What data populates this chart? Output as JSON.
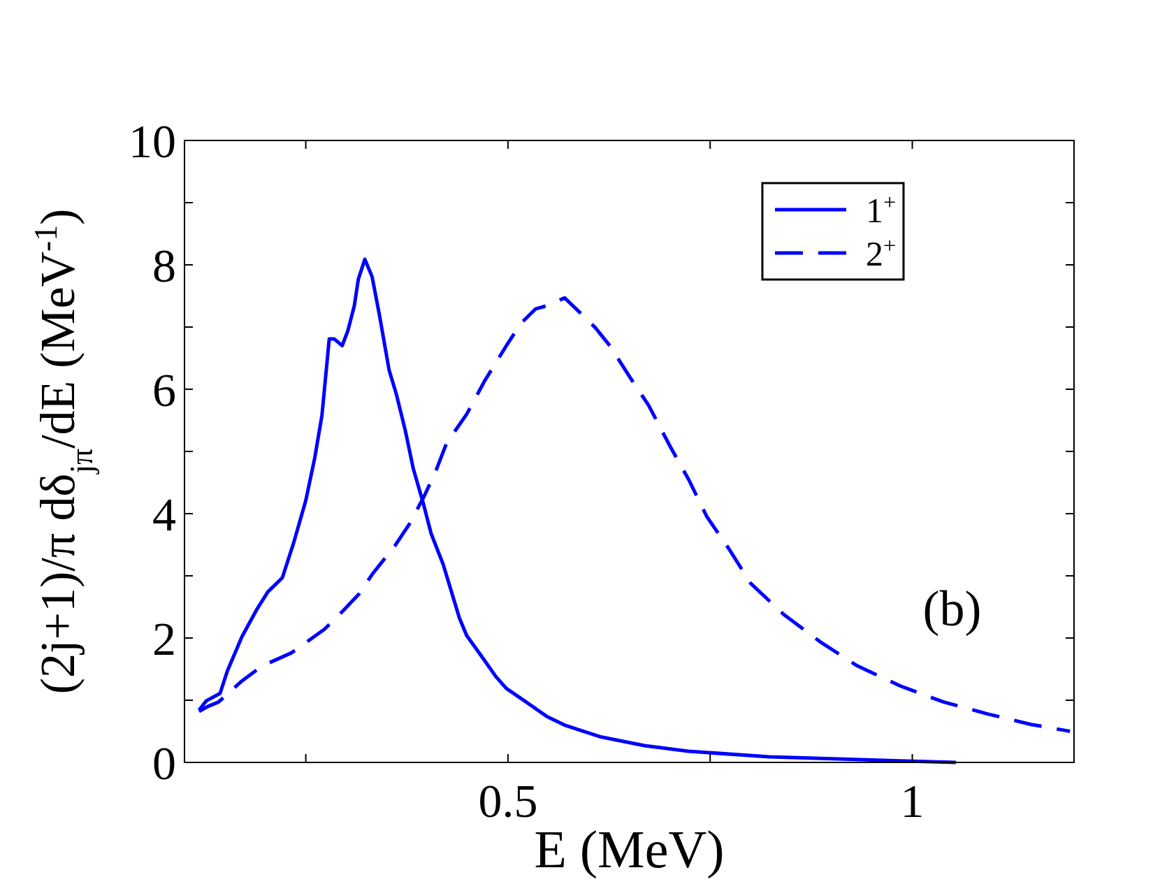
{
  "chart_data": {
    "type": "line",
    "xlabel": "E (MeV)",
    "ylabel": "(2j+1)/π  dδ$_{jπ}$/dE (MeV$^{-1}$)",
    "annotations": [
      "(b)"
    ],
    "xlim": [
      0.1,
      1.2
    ],
    "ylim": [
      0,
      10
    ],
    "xticks": [
      {
        "value": 0.25,
        "label": null
      },
      0.5,
      {
        "value": 0.75,
        "label": null
      },
      1
    ],
    "yticks": [
      0,
      {
        "value": 1,
        "label": null
      },
      2,
      {
        "value": 3,
        "label": null
      },
      4,
      {
        "value": 5,
        "label": null
      },
      6,
      {
        "value": 7,
        "label": null
      },
      8,
      {
        "value": 9,
        "label": null
      },
      10
    ],
    "legend": "top right",
    "grid": false,
    "series": [
      {
        "name": "1$^{+}$",
        "color": "#0000ff",
        "line_style": "solid",
        "x": [
          0.118,
          0.127,
          0.144,
          0.153,
          0.171,
          0.189,
          0.203,
          0.221,
          0.235,
          0.25,
          0.261,
          0.27,
          0.279,
          0.285,
          0.295,
          0.302,
          0.31,
          0.315,
          0.323,
          0.332,
          0.341,
          0.353,
          0.362,
          0.373,
          0.383,
          0.395,
          0.405,
          0.42,
          0.44,
          0.449,
          0.471,
          0.485,
          0.498,
          0.516,
          0.548,
          0.57,
          0.615,
          0.669,
          0.723,
          0.823,
          0.922,
          1.0,
          1.054
        ],
        "values": [
          0.84,
          0.99,
          1.11,
          1.47,
          2.02,
          2.45,
          2.74,
          2.97,
          3.53,
          4.21,
          4.89,
          5.58,
          6.81,
          6.81,
          6.7,
          6.94,
          7.34,
          7.77,
          8.09,
          7.81,
          7.2,
          6.31,
          5.92,
          5.34,
          4.72,
          4.18,
          3.68,
          3.18,
          2.32,
          2.04,
          1.64,
          1.38,
          1.19,
          1.03,
          0.74,
          0.6,
          0.41,
          0.27,
          0.18,
          0.09,
          0.05,
          0.02,
          0.0
        ]
      },
      {
        "name": "2$^{+}$",
        "color": "#0000ff",
        "line_style": "dashed",
        "x": [
          0.118,
          0.129,
          0.142,
          0.171,
          0.196,
          0.232,
          0.273,
          0.297,
          0.316,
          0.333,
          0.36,
          0.378,
          0.396,
          0.41,
          0.424,
          0.449,
          0.471,
          0.498,
          0.516,
          0.534,
          0.55,
          0.57,
          0.59,
          0.608,
          0.626,
          0.651,
          0.674,
          0.701,
          0.723,
          0.746,
          0.773,
          0.8,
          0.841,
          0.886,
          0.931,
          0.985,
          1.039,
          1.093,
          1.147,
          1.195
        ],
        "values": [
          0.82,
          0.9,
          0.97,
          1.31,
          1.55,
          1.76,
          2.14,
          2.45,
          2.71,
          3.04,
          3.48,
          3.83,
          4.27,
          4.66,
          5.13,
          5.6,
          6.13,
          6.7,
          7.06,
          7.29,
          7.35,
          7.47,
          7.22,
          6.99,
          6.7,
          6.19,
          5.74,
          5.07,
          4.56,
          3.95,
          3.44,
          2.88,
          2.38,
          1.94,
          1.56,
          1.23,
          0.97,
          0.78,
          0.61,
          0.5
        ]
      }
    ]
  }
}
